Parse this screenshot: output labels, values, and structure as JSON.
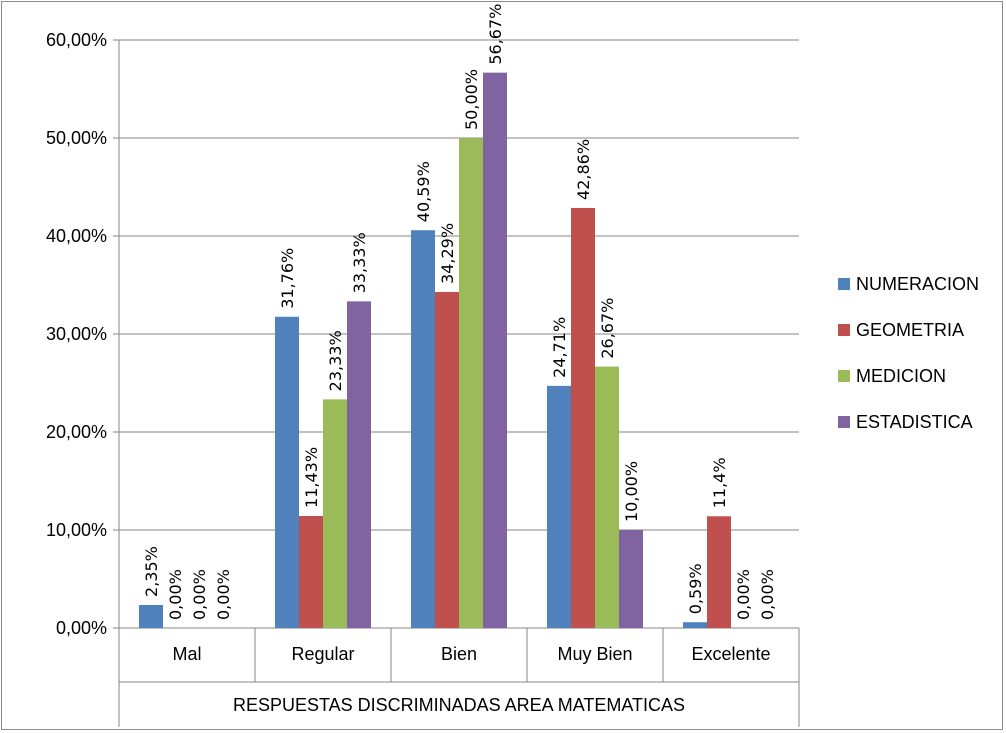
{
  "chart_data": {
    "type": "bar",
    "categories": [
      "Mal",
      "Regular",
      "Bien",
      "Muy Bien",
      "Excelente"
    ],
    "series": [
      {
        "name": "NUMERACION",
        "color": "#4F81BD",
        "values": [
          2.35,
          31.76,
          40.59,
          24.71,
          0.59
        ],
        "labels": [
          "2,35%",
          "31,76%",
          "40,59%",
          "24,71%",
          "0,59%"
        ]
      },
      {
        "name": "GEOMETRIA",
        "color": "#C0504D",
        "values": [
          0.0,
          11.43,
          34.29,
          42.86,
          11.4
        ],
        "labels": [
          "0,00%",
          "11,43%",
          "34,29%",
          "42,86%",
          "11,4%"
        ]
      },
      {
        "name": "MEDICION",
        "color": "#9BBB59",
        "values": [
          0.0,
          23.33,
          50.0,
          26.67,
          0.0
        ],
        "labels": [
          "0,00%",
          "23,33%",
          "50,00%",
          "26,67%",
          "0,00%"
        ]
      },
      {
        "name": "ESTADISTICA",
        "color": "#8064A2",
        "values": [
          0.0,
          33.33,
          56.67,
          10.0,
          0.0
        ],
        "labels": [
          "0,00%",
          "33,33%",
          "56,67%",
          "10,00%",
          "0,00%"
        ]
      }
    ],
    "yticks": [
      0,
      10,
      20,
      30,
      40,
      50,
      60
    ],
    "ytick_labels": [
      "0,00%",
      "10,00%",
      "20,00%",
      "30,00%",
      "40,00%",
      "50,00%",
      "60,00%"
    ],
    "ylim": [
      0,
      60
    ],
    "xlabel": "RESPUESTAS DISCRIMINADAS AREA MATEMATICAS",
    "ylabel": "",
    "title": "",
    "grid": true,
    "legend_position": "right"
  }
}
